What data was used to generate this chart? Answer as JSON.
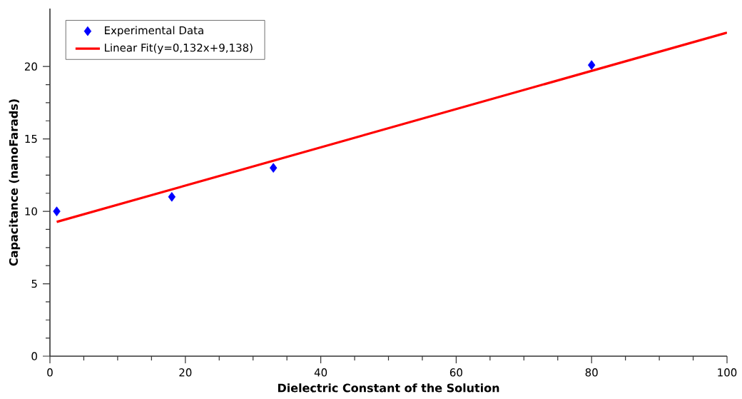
{
  "chart_data": {
    "type": "scatter",
    "xlabel": "Dielectric Constant of the Solution",
    "ylabel": "Capacitance (nanoFarads)",
    "series": [
      {
        "name": "Experimental Data",
        "color": "#0000ff",
        "marker": "diamond",
        "x": [
          1,
          18,
          33,
          80
        ],
        "values": [
          10,
          11,
          13,
          20.1
        ]
      },
      {
        "name": "Linear Fit(y=0,132x+9,138)",
        "type": "line",
        "color": "#ff0000",
        "marker": "none",
        "x": [
          1,
          100
        ],
        "values": [
          9.27,
          22.34
        ]
      }
    ],
    "xlim": [
      0,
      100
    ],
    "ylim": [
      0,
      24
    ],
    "xticks": [
      0,
      20,
      40,
      60,
      80,
      100
    ],
    "yticks": [
      0,
      5,
      10,
      15,
      20
    ],
    "grid": false,
    "legend": "top left",
    "line_style": "solid"
  }
}
